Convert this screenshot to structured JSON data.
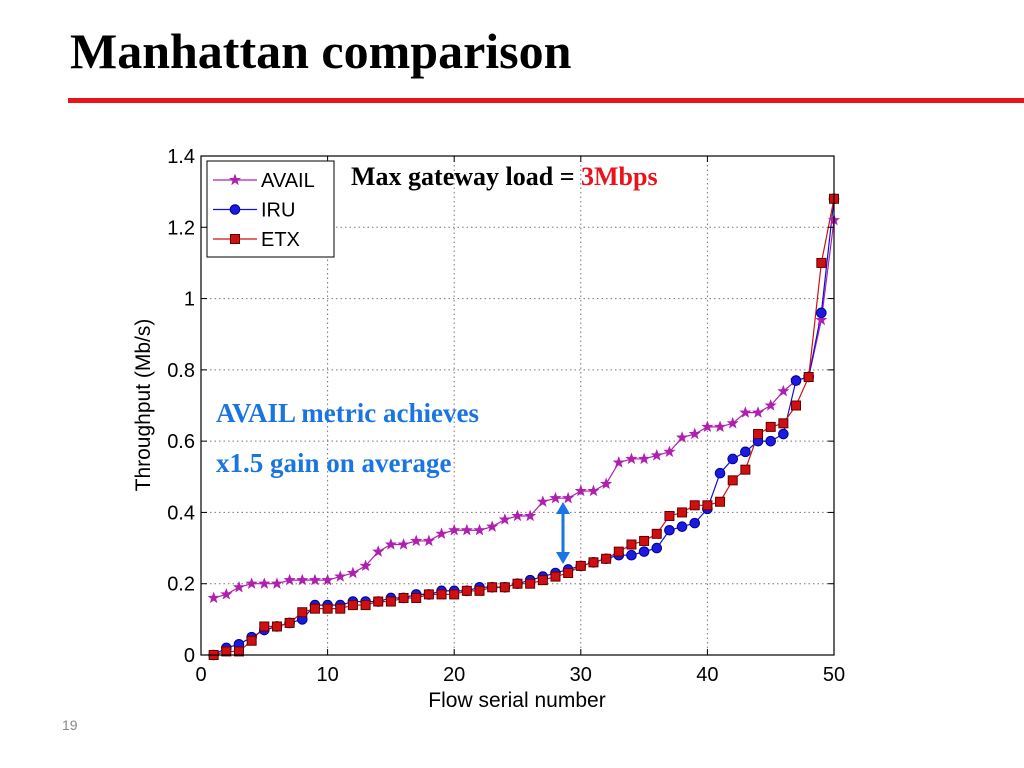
{
  "slide": {
    "title": "Manhattan comparison",
    "number": "19",
    "colors": {
      "title_rule": "#e8141a"
    }
  },
  "annotations": {
    "max_load_prefix": "Max gateway load = ",
    "max_load_value": "3Mbps",
    "gain_line1": "AVAIL metric achieves",
    "gain_line2": "x1.5 gain on average",
    "colors": {
      "max_load_value": "#e8141a",
      "gain_text": "#1a75e0",
      "arrow": "#1a75e0"
    }
  },
  "chart_data": {
    "type": "line",
    "xlabel": "Flow serial number",
    "ylabel": "Throughput (Mb/s)",
    "xlim": [
      0,
      50
    ],
    "ylim": [
      0,
      1.4
    ],
    "xticks": [
      0,
      10,
      20,
      30,
      40,
      50
    ],
    "yticks": [
      0,
      0.2,
      0.4,
      0.6,
      0.8,
      1,
      1.2,
      1.4
    ],
    "xtick_labels": [
      "0",
      "10",
      "20",
      "30",
      "40",
      "50"
    ],
    "ytick_labels": [
      "0",
      "0.2",
      "0.4",
      "0.6",
      "0.8",
      "1",
      "1.2",
      "1.4"
    ],
    "grid": true,
    "legend_position": "top-left",
    "x": [
      1,
      2,
      3,
      4,
      5,
      6,
      7,
      8,
      9,
      10,
      11,
      12,
      13,
      14,
      15,
      16,
      17,
      18,
      19,
      20,
      21,
      22,
      23,
      24,
      25,
      26,
      27,
      28,
      29,
      30,
      31,
      32,
      33,
      34,
      35,
      36,
      37,
      38,
      39,
      40,
      41,
      42,
      43,
      44,
      45,
      46,
      47,
      48,
      49,
      50
    ],
    "series": [
      {
        "name": "AVAIL",
        "color": "#b020b0",
        "marker": "star",
        "values": [
          0.16,
          0.17,
          0.19,
          0.2,
          0.2,
          0.2,
          0.21,
          0.21,
          0.21,
          0.21,
          0.22,
          0.23,
          0.25,
          0.29,
          0.31,
          0.31,
          0.32,
          0.32,
          0.34,
          0.35,
          0.35,
          0.35,
          0.36,
          0.38,
          0.39,
          0.39,
          0.43,
          0.44,
          0.44,
          0.46,
          0.46,
          0.48,
          0.54,
          0.55,
          0.55,
          0.56,
          0.57,
          0.61,
          0.62,
          0.64,
          0.64,
          0.65,
          0.68,
          0.68,
          0.7,
          0.74,
          0.77,
          0.78,
          0.94,
          1.22
        ]
      },
      {
        "name": "IRU",
        "color": "#1010d0",
        "marker": "circle",
        "values": [
          0.0,
          0.02,
          0.03,
          0.05,
          0.07,
          0.08,
          0.09,
          0.1,
          0.14,
          0.14,
          0.14,
          0.15,
          0.15,
          0.15,
          0.16,
          0.16,
          0.17,
          0.17,
          0.18,
          0.18,
          0.18,
          0.19,
          0.19,
          0.19,
          0.2,
          0.21,
          0.22,
          0.23,
          0.24,
          0.25,
          0.26,
          0.27,
          0.28,
          0.28,
          0.29,
          0.3,
          0.35,
          0.36,
          0.37,
          0.41,
          0.51,
          0.55,
          0.57,
          0.6,
          0.6,
          0.62,
          0.77,
          0.78,
          0.96,
          1.28
        ]
      },
      {
        "name": "ETX",
        "color": "#d01010",
        "marker": "square",
        "values": [
          0.0,
          0.01,
          0.01,
          0.04,
          0.08,
          0.08,
          0.09,
          0.12,
          0.13,
          0.13,
          0.13,
          0.14,
          0.14,
          0.15,
          0.15,
          0.16,
          0.16,
          0.17,
          0.17,
          0.17,
          0.18,
          0.18,
          0.19,
          0.19,
          0.2,
          0.2,
          0.21,
          0.22,
          0.23,
          0.25,
          0.26,
          0.27,
          0.29,
          0.31,
          0.32,
          0.34,
          0.39,
          0.4,
          0.42,
          0.42,
          0.43,
          0.49,
          0.52,
          0.62,
          0.64,
          0.65,
          0.7,
          0.78,
          1.1,
          1.28
        ]
      }
    ]
  }
}
